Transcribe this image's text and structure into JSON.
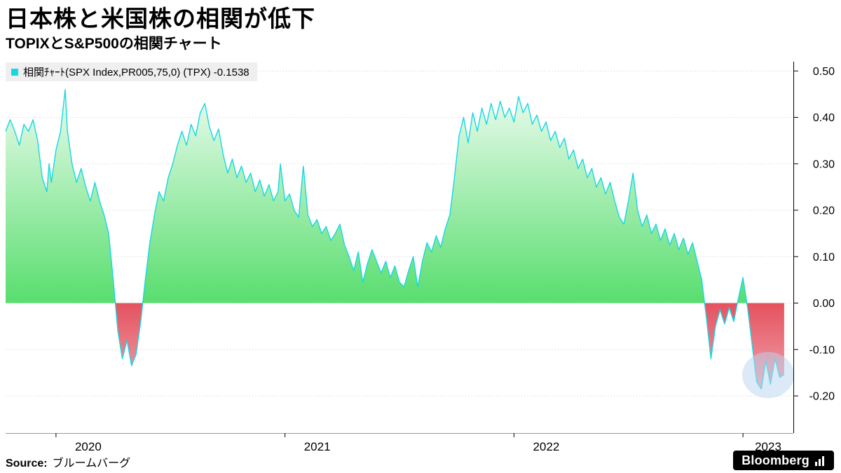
{
  "footer": {
    "source_label": "Source:",
    "source_value": "ブルームバーグ",
    "brand": "Bloomberg"
  },
  "chart_data": {
    "type": "area",
    "title": "日本株と米国株の相関が低下",
    "subtitle": "TOPIXとS&P500の相関チャート",
    "legend_label": "相関ﾁｬｰﾄ(SPX Index,PR005,75,0) (TPX) -0.1538",
    "series_name": "相関ﾁｬｰﾄ(SPX Index,PR005,75,0) (TPX)",
    "current_value": -0.1538,
    "x_unit": "decimal_year",
    "xlim": [
      2019.78,
      2023.22
    ],
    "ylim": [
      -0.28,
      0.52
    ],
    "yticks": [
      0.5,
      0.4,
      0.3,
      0.2,
      0.1,
      0.0,
      -0.1,
      -0.2
    ],
    "ytick_labels": [
      "0.50",
      "0.40",
      "0.30",
      "0.20",
      "0.10",
      "0.00",
      "-0.10",
      "-0.20"
    ],
    "year_ticks": [
      2020,
      2021,
      2022,
      2023
    ],
    "year_labels": [
      "2020",
      "2021",
      "2022",
      "2023"
    ],
    "grid": "dotted-horizontal",
    "legend_position": "top-left",
    "annotation_circle": {
      "x": 2023.11,
      "y": -0.155,
      "note": "highlight of recent negative correlation"
    },
    "colors": {
      "line": "#15d8e5",
      "area_positive_top": "#ffffff",
      "area_positive_bottom": "#58de6e",
      "area_negative_top": "#e4525f",
      "area_negative_bottom": "#f8ccd4",
      "highlight": "#b9d6f2",
      "grid": "#c9c9c9",
      "axis": "#000000",
      "x_axis_line": "#999999",
      "legend_bg": "#efefef"
    },
    "points": [
      [
        2019.78,
        0.37
      ],
      [
        2019.8,
        0.395
      ],
      [
        2019.82,
        0.37
      ],
      [
        2019.84,
        0.34
      ],
      [
        2019.86,
        0.385
      ],
      [
        2019.88,
        0.37
      ],
      [
        2019.9,
        0.395
      ],
      [
        2019.92,
        0.35
      ],
      [
        2019.94,
        0.27
      ],
      [
        2019.96,
        0.24
      ],
      [
        2019.97,
        0.3
      ],
      [
        2019.98,
        0.26
      ],
      [
        2020.0,
        0.33
      ],
      [
        2020.02,
        0.37
      ],
      [
        2020.04,
        0.46
      ],
      [
        2020.05,
        0.37
      ],
      [
        2020.07,
        0.3
      ],
      [
        2020.09,
        0.26
      ],
      [
        2020.11,
        0.29
      ],
      [
        2020.13,
        0.25
      ],
      [
        2020.15,
        0.22
      ],
      [
        2020.17,
        0.26
      ],
      [
        2020.19,
        0.22
      ],
      [
        2020.21,
        0.19
      ],
      [
        2020.23,
        0.15
      ],
      [
        2020.25,
        0.05
      ],
      [
        2020.27,
        -0.06
      ],
      [
        2020.29,
        -0.12
      ],
      [
        2020.31,
        -0.08
      ],
      [
        2020.33,
        -0.135
      ],
      [
        2020.35,
        -0.11
      ],
      [
        2020.37,
        -0.04
      ],
      [
        2020.39,
        0.05
      ],
      [
        2020.41,
        0.13
      ],
      [
        2020.43,
        0.19
      ],
      [
        2020.45,
        0.24
      ],
      [
        2020.47,
        0.22
      ],
      [
        2020.49,
        0.27
      ],
      [
        2020.51,
        0.3
      ],
      [
        2020.53,
        0.34
      ],
      [
        2020.55,
        0.37
      ],
      [
        2020.57,
        0.34
      ],
      [
        2020.59,
        0.385
      ],
      [
        2020.61,
        0.36
      ],
      [
        2020.63,
        0.41
      ],
      [
        2020.65,
        0.43
      ],
      [
        2020.67,
        0.38
      ],
      [
        2020.69,
        0.35
      ],
      [
        2020.71,
        0.375
      ],
      [
        2020.73,
        0.32
      ],
      [
        2020.75,
        0.28
      ],
      [
        2020.77,
        0.31
      ],
      [
        2020.79,
        0.27
      ],
      [
        2020.81,
        0.295
      ],
      [
        2020.83,
        0.26
      ],
      [
        2020.85,
        0.28
      ],
      [
        2020.87,
        0.24
      ],
      [
        2020.89,
        0.265
      ],
      [
        2020.91,
        0.23
      ],
      [
        2020.93,
        0.255
      ],
      [
        2020.95,
        0.22
      ],
      [
        2020.97,
        0.24
      ],
      [
        2020.98,
        0.3
      ],
      [
        2021.0,
        0.22
      ],
      [
        2021.02,
        0.235
      ],
      [
        2021.04,
        0.2
      ],
      [
        2021.06,
        0.185
      ],
      [
        2021.08,
        0.295
      ],
      [
        2021.1,
        0.19
      ],
      [
        2021.12,
        0.165
      ],
      [
        2021.14,
        0.18
      ],
      [
        2021.16,
        0.15
      ],
      [
        2021.18,
        0.165
      ],
      [
        2021.2,
        0.135
      ],
      [
        2021.22,
        0.15
      ],
      [
        2021.24,
        0.17
      ],
      [
        2021.26,
        0.125
      ],
      [
        2021.28,
        0.1
      ],
      [
        2021.3,
        0.07
      ],
      [
        2021.32,
        0.11
      ],
      [
        2021.34,
        0.045
      ],
      [
        2021.36,
        0.085
      ],
      [
        2021.38,
        0.115
      ],
      [
        2021.4,
        0.09
      ],
      [
        2021.42,
        0.065
      ],
      [
        2021.44,
        0.09
      ],
      [
        2021.46,
        0.055
      ],
      [
        2021.48,
        0.08
      ],
      [
        2021.5,
        0.045
      ],
      [
        2021.52,
        0.035
      ],
      [
        2021.54,
        0.07
      ],
      [
        2021.56,
        0.1
      ],
      [
        2021.58,
        0.035
      ],
      [
        2021.6,
        0.09
      ],
      [
        2021.62,
        0.13
      ],
      [
        2021.64,
        0.11
      ],
      [
        2021.66,
        0.145
      ],
      [
        2021.68,
        0.12
      ],
      [
        2021.7,
        0.16
      ],
      [
        2021.72,
        0.19
      ],
      [
        2021.74,
        0.27
      ],
      [
        2021.76,
        0.36
      ],
      [
        2021.78,
        0.4
      ],
      [
        2021.8,
        0.345
      ],
      [
        2021.82,
        0.41
      ],
      [
        2021.84,
        0.37
      ],
      [
        2021.86,
        0.42
      ],
      [
        2021.88,
        0.385
      ],
      [
        2021.9,
        0.43
      ],
      [
        2021.92,
        0.395
      ],
      [
        2021.94,
        0.435
      ],
      [
        2021.96,
        0.4
      ],
      [
        2021.98,
        0.42
      ],
      [
        2022.0,
        0.39
      ],
      [
        2022.02,
        0.445
      ],
      [
        2022.04,
        0.41
      ],
      [
        2022.06,
        0.43
      ],
      [
        2022.08,
        0.385
      ],
      [
        2022.1,
        0.405
      ],
      [
        2022.12,
        0.37
      ],
      [
        2022.14,
        0.39
      ],
      [
        2022.16,
        0.35
      ],
      [
        2022.18,
        0.37
      ],
      [
        2022.2,
        0.335
      ],
      [
        2022.22,
        0.355
      ],
      [
        2022.24,
        0.31
      ],
      [
        2022.26,
        0.33
      ],
      [
        2022.28,
        0.29
      ],
      [
        2022.3,
        0.31
      ],
      [
        2022.32,
        0.27
      ],
      [
        2022.34,
        0.29
      ],
      [
        2022.36,
        0.25
      ],
      [
        2022.38,
        0.27
      ],
      [
        2022.4,
        0.235
      ],
      [
        2022.42,
        0.26
      ],
      [
        2022.44,
        0.22
      ],
      [
        2022.46,
        0.185
      ],
      [
        2022.48,
        0.17
      ],
      [
        2022.5,
        0.22
      ],
      [
        2022.52,
        0.28
      ],
      [
        2022.54,
        0.2
      ],
      [
        2022.56,
        0.165
      ],
      [
        2022.58,
        0.19
      ],
      [
        2022.6,
        0.15
      ],
      [
        2022.62,
        0.17
      ],
      [
        2022.64,
        0.135
      ],
      [
        2022.66,
        0.16
      ],
      [
        2022.68,
        0.125
      ],
      [
        2022.7,
        0.15
      ],
      [
        2022.72,
        0.115
      ],
      [
        2022.74,
        0.14
      ],
      [
        2022.76,
        0.105
      ],
      [
        2022.78,
        0.13
      ],
      [
        2022.8,
        0.09
      ],
      [
        2022.82,
        0.05
      ],
      [
        2022.84,
        -0.03
      ],
      [
        2022.86,
        -0.12
      ],
      [
        2022.88,
        -0.05
      ],
      [
        2022.9,
        -0.015
      ],
      [
        2022.92,
        -0.045
      ],
      [
        2022.94,
        -0.01
      ],
      [
        2022.96,
        -0.04
      ],
      [
        2022.98,
        0.01
      ],
      [
        2023.0,
        0.055
      ],
      [
        2023.02,
        -0.01
      ],
      [
        2023.04,
        -0.09
      ],
      [
        2023.06,
        -0.17
      ],
      [
        2023.08,
        -0.185
      ],
      [
        2023.1,
        -0.125
      ],
      [
        2023.12,
        -0.175
      ],
      [
        2023.14,
        -0.12
      ],
      [
        2023.16,
        -0.16
      ],
      [
        2023.18,
        -0.1538
      ]
    ]
  }
}
